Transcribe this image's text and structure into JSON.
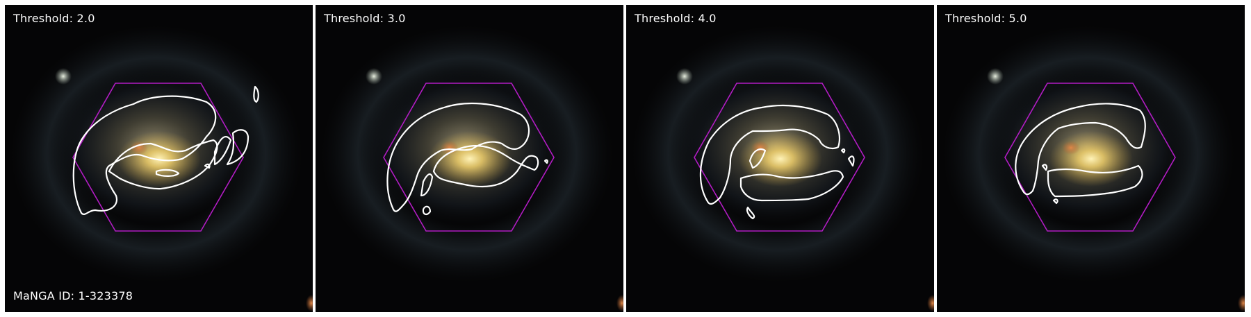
{
  "panels": [
    {
      "threshold_label": "Threshold: 2.0"
    },
    {
      "threshold_label": "Threshold: 3.0"
    },
    {
      "threshold_label": "Threshold: 4.0"
    },
    {
      "threshold_label": "Threshold: 5.0"
    }
  ],
  "galaxy_id_label": "MaNGA ID: 1-323378",
  "colors": {
    "background": "#050506",
    "hexagon": "#b21cc4",
    "contour": "#ffffff",
    "label_text": "#ffffff"
  }
}
